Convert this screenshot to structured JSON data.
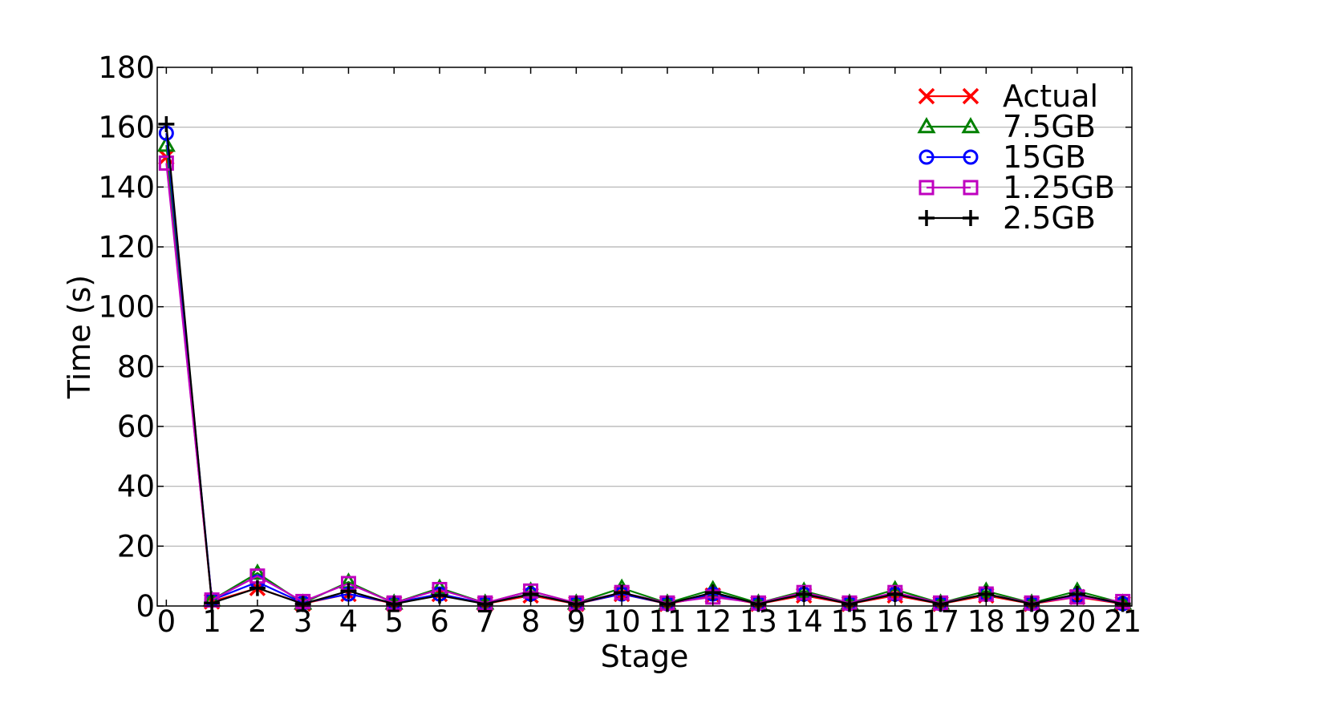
{
  "chart_data": {
    "type": "line",
    "title": "",
    "xlabel": "Stage",
    "ylabel": "Time (s)",
    "x": [
      0,
      1,
      2,
      3,
      4,
      5,
      6,
      7,
      8,
      9,
      10,
      11,
      12,
      13,
      14,
      15,
      16,
      17,
      18,
      19,
      20,
      21
    ],
    "xlim": [
      -0.2,
      21.2
    ],
    "ylim": [
      0,
      180
    ],
    "xticks": [
      0,
      1,
      2,
      3,
      4,
      5,
      6,
      7,
      8,
      9,
      10,
      11,
      12,
      13,
      14,
      15,
      16,
      17,
      18,
      19,
      20,
      21
    ],
    "yticks": [
      0,
      20,
      40,
      60,
      80,
      100,
      120,
      140,
      160,
      180
    ],
    "grid": "horizontal",
    "legend_position": "top-right",
    "series": [
      {
        "name": "Actual",
        "color": "#ff0000",
        "marker": "x",
        "values": [
          150,
          1.5,
          6,
          0.8,
          4,
          0.8,
          4,
          0.7,
          3.5,
          0.7,
          4,
          0.7,
          3.5,
          0.7,
          3.5,
          0.7,
          3.5,
          0.7,
          3.5,
          0.7,
          3,
          0.7
        ]
      },
      {
        "name": "7.5GB",
        "color": "#008000",
        "marker": "triangle",
        "values": [
          154,
          2,
          11,
          1,
          8,
          1,
          6,
          1,
          5,
          1,
          6,
          1,
          5.5,
          1,
          5,
          1,
          5.5,
          1,
          5,
          1,
          5,
          1
        ]
      },
      {
        "name": "15GB",
        "color": "#0000ff",
        "marker": "circle",
        "values": [
          158,
          2,
          8,
          1,
          4,
          1,
          4,
          0.8,
          4,
          0.8,
          4,
          0.8,
          4,
          0.8,
          4,
          0.8,
          4,
          0.8,
          4,
          0.8,
          3.5,
          0.8
        ]
      },
      {
        "name": "1.25GB",
        "color": "#bf00bf",
        "marker": "square",
        "values": [
          148,
          2,
          10,
          1.5,
          7.5,
          1,
          5.5,
          1,
          5,
          1,
          4.5,
          1,
          3,
          1,
          4.5,
          1,
          4.5,
          1,
          4,
          1,
          3,
          1.5
        ]
      },
      {
        "name": "2.5GB",
        "color": "#000000",
        "marker": "plus",
        "values": [
          161,
          1,
          6,
          0.7,
          5,
          0.7,
          3.5,
          0.7,
          4,
          0.7,
          4.5,
          0.7,
          4.5,
          0.7,
          4,
          0.7,
          4,
          0.7,
          4,
          0.7,
          4,
          0.7
        ]
      }
    ]
  }
}
